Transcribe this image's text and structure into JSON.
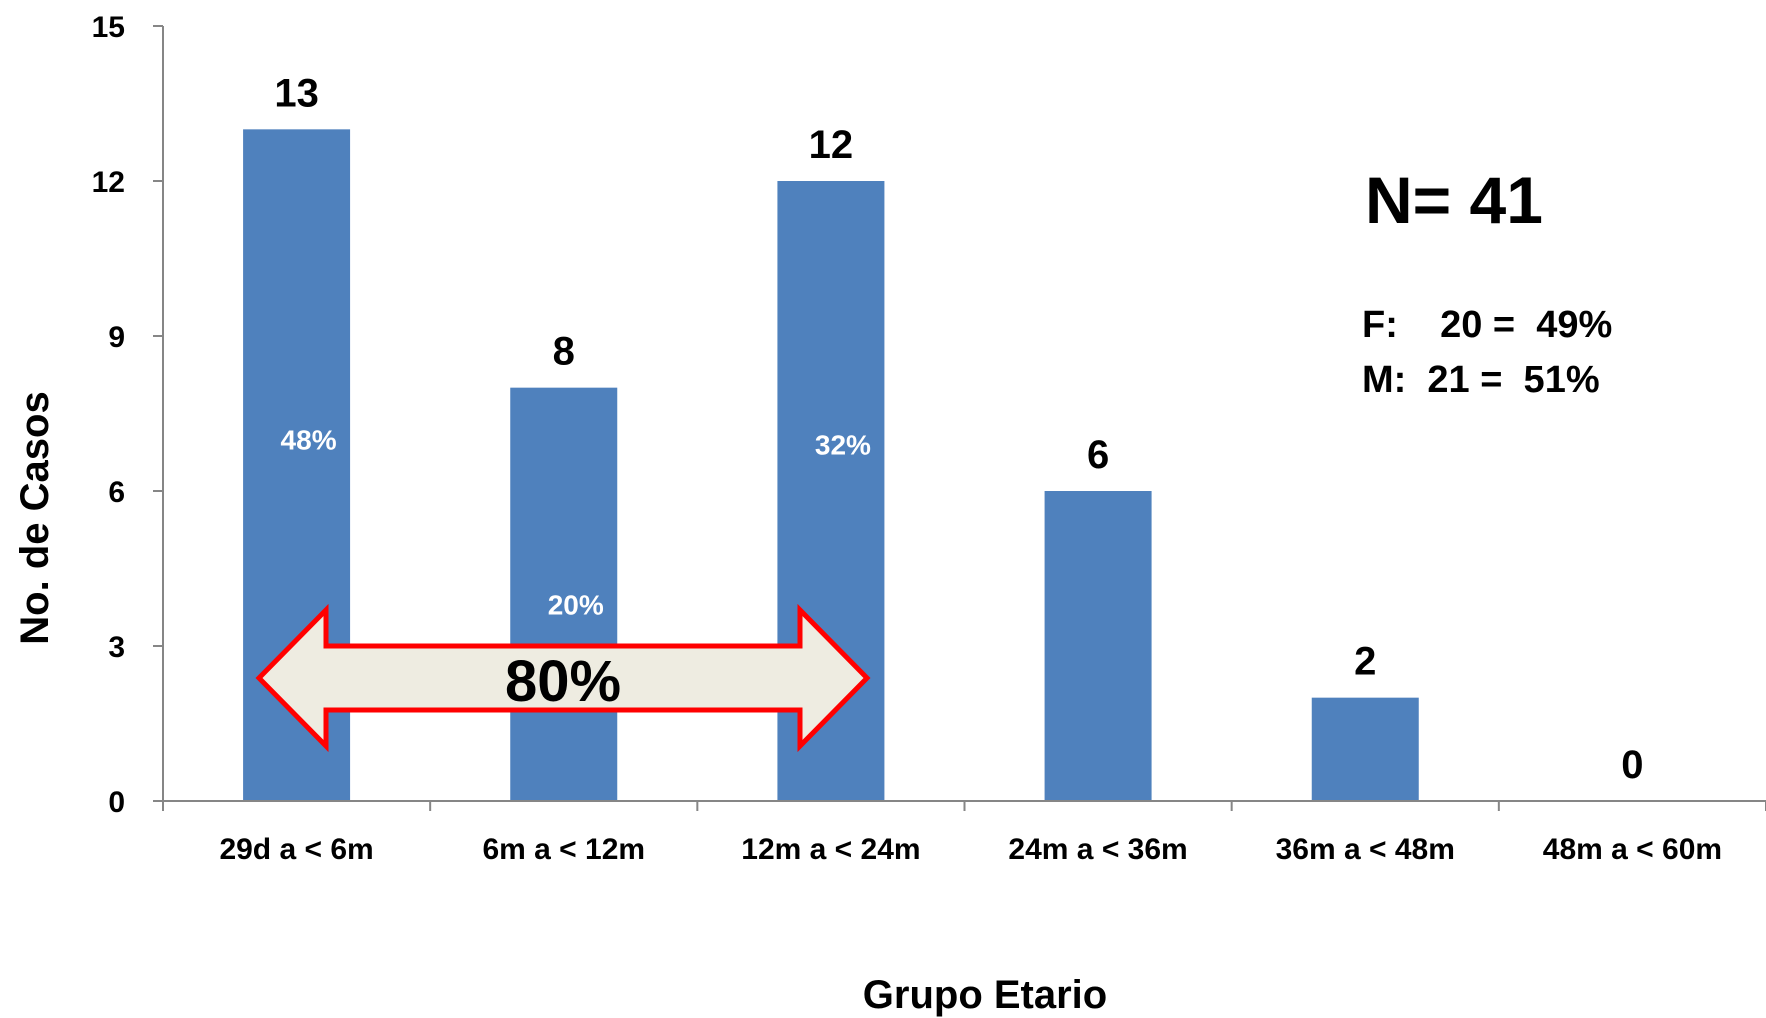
{
  "chart_data": {
    "type": "bar",
    "categories": [
      "29d a < 6m",
      "6m a < 12m",
      "12m a < 24m",
      "24m a < 36m",
      "36m a < 48m",
      "48m a < 60m"
    ],
    "values": [
      13,
      8,
      12,
      6,
      2,
      0
    ],
    "data_labels": [
      "13",
      "8",
      "12",
      "6",
      "2",
      "0"
    ],
    "bar_percent_labels": [
      {
        "category": "29d a < 6m",
        "text": "48%",
        "y": 7
      },
      {
        "category": "6m a < 12m",
        "text": "20%",
        "y": 3.8
      },
      {
        "category": "12m a < 24m",
        "text": "32%",
        "y": 6.9
      }
    ],
    "xlabel": "Grupo Etario",
    "ylabel": "No. de Casos",
    "ylim": [
      0,
      15
    ],
    "yticks": [
      0,
      3,
      6,
      9,
      12,
      15
    ],
    "ytick_labels": [
      "0",
      "3",
      "6",
      "9",
      "12",
      "15"
    ],
    "bar_color": "#4F81BD",
    "grid": false,
    "legend": "none",
    "annotations": {
      "total": "N= 41",
      "female": "F:    20 =  49%",
      "male": "M:  21 =  51%",
      "arrow_label": "80%",
      "arrow_fill": "#EEECE1",
      "arrow_stroke": "#FF0000"
    }
  }
}
